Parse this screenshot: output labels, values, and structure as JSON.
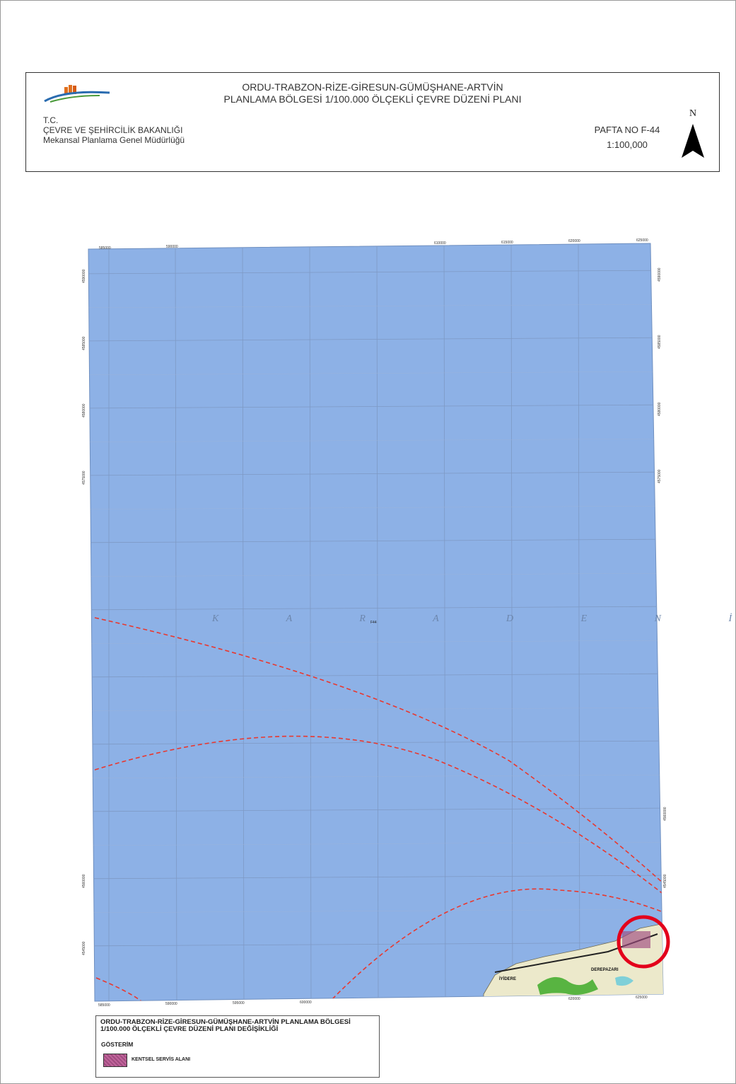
{
  "header": {
    "title_line1": "ORDU-TRABZON-RİZE-GİRESUN-GÜMÜŞHANE-ARTVİN",
    "title_line2": "PLANLAMA BÖLGESİ 1/100.000 ÖLÇEKLİ ÇEVRE DÜZENİ PLANI",
    "org_line1": "T.C.",
    "org_line2": "ÇEVRE VE ŞEHİRCİLİK BAKANLIĞI",
    "org_line3": "Mekansal Planlama Genel Müdürlüğü",
    "sheet_no": "PAFTA NO F-44",
    "scale": "1:100,000",
    "north_label": "N"
  },
  "map": {
    "sea_name": "K A R A D E N İ Z",
    "sheet_tag": "F44",
    "top_easting_labels": [
      "585000",
      "590000",
      "610000",
      "615000",
      "620000",
      "625000"
    ],
    "bottom_easting_labels": [
      "585000",
      "590000",
      "595000",
      "600000",
      "620000",
      "625000"
    ],
    "left_northing_labels": [
      "4590000",
      "4585000",
      "4580000",
      "4575000",
      "4560000",
      "4545000"
    ],
    "right_northing_labels": [
      "4590000",
      "4585000",
      "4580000",
      "4575000",
      "4560000",
      "4545000"
    ],
    "place_labels": [
      "DEREPAZARI",
      "İYİDERE"
    ],
    "colors": {
      "sea": "#8db1e6",
      "grid": "#7e99c4",
      "boundary": "#e8382f",
      "land": "#ece9cb",
      "forest": "#58b441",
      "highlight": "#e3001b"
    }
  },
  "legend": {
    "title_line1": "ORDU-TRABZON-RİZE-GİRESUN-GÜMÜŞHANE-ARTVİN PLANLAMA BÖLGESİ",
    "title_line2": "1/100.000 ÖLÇEKLİ ÇEVRE DÜZENİ PLANI DEĞİŞİKLİĞİ",
    "heading": "GÖSTERİM",
    "item_label": "KENTSEL SERVİS ALANI",
    "item_color": "#c0649a"
  }
}
